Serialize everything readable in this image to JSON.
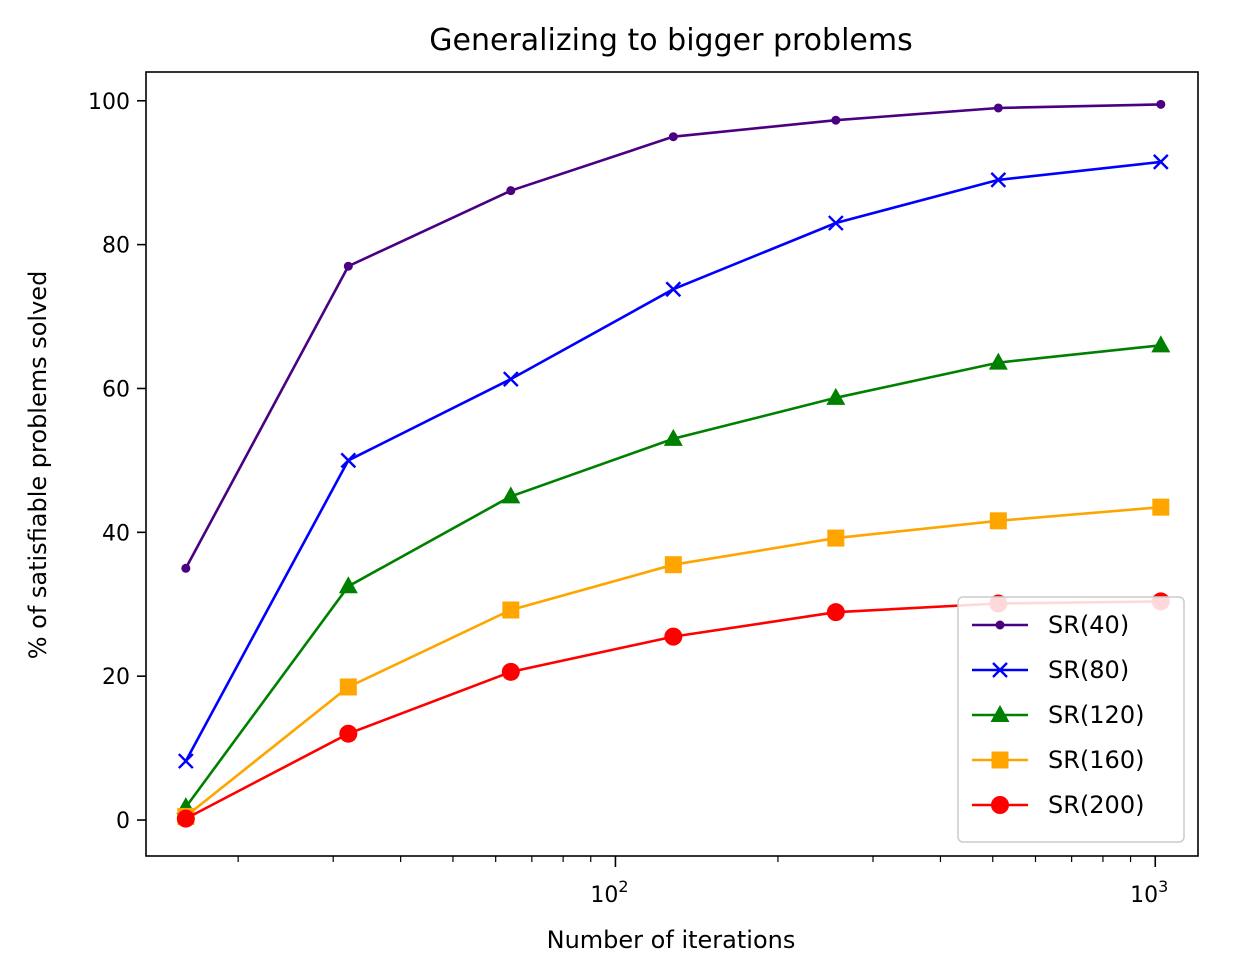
{
  "chart_data": {
    "type": "line",
    "title": "Generalizing to bigger problems",
    "xlabel": "Number of iterations",
    "ylabel": "% of satisfiable problems solved",
    "xscale": "log",
    "xlim": [
      13.5,
      1200
    ],
    "ylim": [
      -5,
      104
    ],
    "grid": false,
    "legend_position": "bottom-right",
    "x": [
      16,
      32,
      64,
      128,
      256,
      512,
      1024
    ],
    "yticks": [
      0,
      20,
      40,
      60,
      80,
      100
    ],
    "xticks_major": [
      {
        "value": 100,
        "base": "10",
        "exp": "2"
      },
      {
        "value": 1000,
        "base": "10",
        "exp": "3"
      }
    ],
    "xticks_minor": [
      20,
      30,
      40,
      50,
      60,
      70,
      80,
      90,
      200,
      300,
      400,
      500,
      600,
      700,
      800,
      900
    ],
    "series": [
      {
        "name": "SR(40)",
        "color": "#4b0082",
        "marker": "dot",
        "values": [
          35.0,
          77.0,
          87.5,
          95.0,
          97.3,
          99.0,
          99.5
        ]
      },
      {
        "name": "SR(80)",
        "color": "#0000ff",
        "marker": "x",
        "values": [
          8.2,
          50.0,
          61.3,
          73.8,
          83.0,
          89.0,
          91.5
        ]
      },
      {
        "name": "SR(120)",
        "color": "#008000",
        "marker": "triangle",
        "values": [
          1.8,
          32.5,
          45.0,
          53.0,
          58.7,
          63.6,
          66.0
        ]
      },
      {
        "name": "SR(160)",
        "color": "#ffa500",
        "marker": "square",
        "values": [
          0.5,
          18.5,
          29.2,
          35.5,
          39.2,
          41.6,
          43.5
        ]
      },
      {
        "name": "SR(200)",
        "color": "#ff0000",
        "marker": "circle",
        "values": [
          0.2,
          12.0,
          20.6,
          25.5,
          28.9,
          30.1,
          30.4
        ]
      }
    ]
  }
}
